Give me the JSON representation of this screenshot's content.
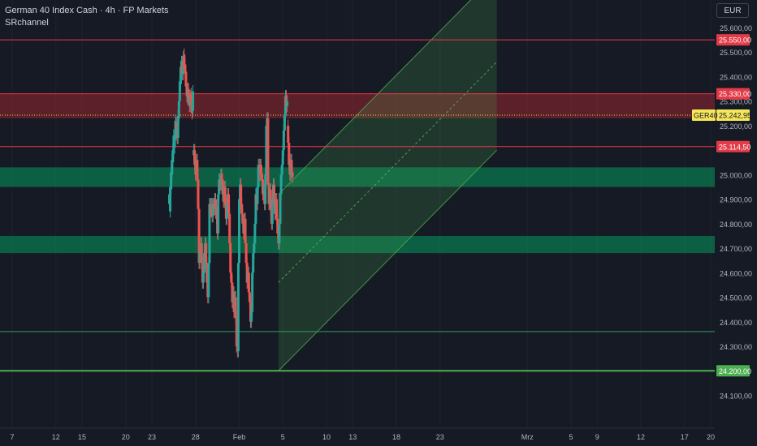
{
  "header": {
    "title": "German 40 Index Cash · 4h · FP Markets",
    "indicator": "SRchannel",
    "currency": "EUR"
  },
  "chart_data": {
    "type": "candlestick",
    "price_axis": {
      "min": 24050,
      "max": 25750,
      "ticks": [
        "25.600,00",
        "25.500,00",
        "25.400,00",
        "25.300,00",
        "25.200,00",
        "24.900,00",
        "24.800,00",
        "24.700,00",
        "24.600,00",
        "24.500,00",
        "24.400,00",
        "24.300,00",
        "24.100,00"
      ],
      "tick_values": [
        25600,
        25500,
        25400,
        25300,
        25200,
        24900,
        24800,
        24700,
        24600,
        24500,
        24400,
        24300,
        24100
      ],
      "partial_tick": {
        "label": "25.000,00",
        "value": 25000
      }
    },
    "time_axis": {
      "labels": [
        "7",
        "12",
        "15",
        "20",
        "23",
        "28",
        "Feb",
        "5",
        "10",
        "13",
        "18",
        "23",
        "Mrz",
        "5",
        "9",
        "12",
        "17",
        "20"
      ],
      "positions": [
        7,
        12,
        15,
        20,
        23,
        28,
        33,
        38,
        43,
        46,
        51,
        56,
        66,
        71,
        74,
        79,
        84,
        87
      ]
    },
    "current_price": {
      "symbol": "GER40",
      "label": "25.242,95",
      "value": 25242.95
    },
    "resistance_levels": [
      {
        "label": "25.550,00",
        "value": 25550
      },
      {
        "label": "25.330,00",
        "value": 25330
      },
      {
        "label": "25.114,50",
        "value": 25114.5
      }
    ],
    "support_levels": [
      {
        "label": "24.200,00",
        "value": 24200
      }
    ],
    "zones": [
      {
        "type": "resistance",
        "top": 25330,
        "bottom": 25230
      },
      {
        "type": "support",
        "top": 25030,
        "bottom": 24950
      },
      {
        "type": "support",
        "top": 24750,
        "bottom": 24680
      }
    ],
    "extra_lines": [
      {
        "type": "support",
        "value": 24360
      }
    ],
    "channel": {
      "lower": [
        [
          37.5,
          24200
        ],
        [
          62.5,
          25100
        ]
      ],
      "upper": [
        [
          37.5,
          24920
        ],
        [
          62.5,
          25820
        ]
      ]
    },
    "candles": [
      [
        25.0,
        24920,
        24880
      ],
      [
        25.1,
        24950,
        24850
      ],
      [
        25.2,
        25010,
        24940
      ],
      [
        25.3,
        25060,
        25000
      ],
      [
        25.4,
        25100,
        25050
      ],
      [
        25.5,
        25160,
        25090
      ],
      [
        25.6,
        25130,
        25110
      ],
      [
        25.7,
        25220,
        25140
      ],
      [
        25.8,
        25190,
        25210
      ],
      [
        25.9,
        25150,
        25190
      ],
      [
        26.0,
        25240,
        25150
      ],
      [
        26.1,
        25300,
        25230
      ],
      [
        26.2,
        25380,
        25300
      ],
      [
        26.3,
        25440,
        25370
      ],
      [
        26.4,
        25460,
        25430
      ],
      [
        26.5,
        25410,
        25460
      ],
      [
        26.6,
        25480,
        25410
      ],
      [
        26.7,
        25440,
        25490
      ],
      [
        26.8,
        25420,
        25450
      ],
      [
        26.9,
        25360,
        25420
      ],
      [
        27.0,
        25320,
        25370
      ],
      [
        27.1,
        25350,
        25310
      ],
      [
        27.2,
        25310,
        25350
      ],
      [
        27.3,
        25280,
        25310
      ],
      [
        27.4,
        25320,
        25280
      ],
      [
        27.5,
        25290,
        25330
      ],
      [
        27.6,
        25250,
        25290
      ],
      [
        27.7,
        25340,
        25260
      ],
      [
        27.8,
        25100,
        25080
      ],
      [
        27.9,
        25040,
        25100
      ],
      [
        28.0,
        25000,
        25040
      ],
      [
        28.1,
        25060,
        25000
      ],
      [
        28.2,
        24980,
        25060
      ],
      [
        28.3,
        24860,
        24980
      ],
      [
        28.4,
        24640,
        24860
      ],
      [
        28.5,
        24680,
        24640
      ],
      [
        28.6,
        24720,
        24680
      ],
      [
        28.7,
        24640,
        24720
      ],
      [
        28.8,
        24560,
        24640
      ],
      [
        28.9,
        24600,
        24560
      ],
      [
        29.0,
        24680,
        24600
      ],
      [
        29.1,
        24720,
        24680
      ],
      [
        29.2,
        24640,
        24720
      ],
      [
        29.3,
        24560,
        24640
      ],
      [
        29.4,
        24500,
        24560
      ],
      [
        29.5,
        24640,
        24500
      ],
      [
        29.6,
        24880,
        24640
      ],
      [
        29.7,
        24850,
        24880
      ],
      [
        29.8,
        24880,
        24850
      ],
      [
        29.9,
        24830,
        24880
      ],
      [
        30.0,
        24880,
        24830
      ],
      [
        30.1,
        24860,
        24880
      ],
      [
        30.2,
        24900,
        24860
      ],
      [
        30.3,
        24870,
        24900
      ],
      [
        30.4,
        24820,
        24870
      ],
      [
        30.5,
        24760,
        24820
      ],
      [
        30.6,
        24920,
        24760
      ],
      [
        30.7,
        24980,
        24920
      ],
      [
        30.8,
        24960,
        24980
      ],
      [
        30.9,
        25000,
        24960
      ],
      [
        31.0,
        24980,
        25000
      ],
      [
        31.1,
        24920,
        24980
      ],
      [
        31.2,
        24890,
        24920
      ],
      [
        31.3,
        24950,
        24890
      ],
      [
        31.4,
        24880,
        24950
      ],
      [
        31.5,
        24820,
        24880
      ],
      [
        31.6,
        24880,
        24820
      ],
      [
        31.7,
        24920,
        24880
      ],
      [
        31.8,
        24840,
        24920
      ],
      [
        31.9,
        24720,
        24840
      ],
      [
        32.0,
        24600,
        24720
      ],
      [
        32.1,
        24560,
        24600
      ],
      [
        32.2,
        24480,
        24560
      ],
      [
        32.3,
        24520,
        24480
      ],
      [
        32.4,
        24440,
        24520
      ],
      [
        32.5,
        24500,
        24440
      ],
      [
        32.6,
        24420,
        24500
      ],
      [
        32.7,
        24300,
        24420
      ],
      [
        32.8,
        24280,
        24300
      ],
      [
        32.9,
        24640,
        24280
      ],
      [
        33.0,
        24900,
        24640
      ],
      [
        33.1,
        24960,
        24900
      ],
      [
        33.2,
        24880,
        24960
      ],
      [
        33.3,
        24840,
        24880
      ],
      [
        33.4,
        24800,
        24840
      ],
      [
        33.5,
        24760,
        24800
      ],
      [
        33.6,
        24820,
        24760
      ],
      [
        33.7,
        24720,
        24820
      ],
      [
        33.8,
        24640,
        24720
      ],
      [
        33.9,
        24560,
        24640
      ],
      [
        34.0,
        24600,
        24560
      ],
      [
        34.1,
        24520,
        24600
      ],
      [
        34.2,
        24480,
        24520
      ],
      [
        34.3,
        24400,
        24480
      ],
      [
        34.4,
        24440,
        24400
      ],
      [
        34.5,
        24600,
        24440
      ],
      [
        34.6,
        24680,
        24600
      ],
      [
        34.7,
        24720,
        24680
      ],
      [
        34.8,
        24800,
        24720
      ],
      [
        34.9,
        24920,
        24800
      ],
      [
        35.0,
        24880,
        24920
      ],
      [
        35.1,
        24950,
        24880
      ],
      [
        35.2,
        25040,
        24950
      ],
      [
        35.3,
        25000,
        25040
      ],
      [
        35.4,
        25040,
        25000
      ],
      [
        35.5,
        25000,
        25040
      ],
      [
        35.6,
        24980,
        25000
      ],
      [
        35.7,
        24920,
        24980
      ],
      [
        35.8,
        24940,
        24920
      ],
      [
        35.9,
        24880,
        24940
      ],
      [
        36.0,
        25000,
        24880
      ],
      [
        36.1,
        25200,
        25000
      ],
      [
        36.2,
        25230,
        25200
      ],
      [
        36.3,
        24960,
        25230
      ],
      [
        36.4,
        24880,
        24960
      ],
      [
        36.5,
        24940,
        24880
      ],
      [
        36.6,
        24860,
        24940
      ],
      [
        36.7,
        24800,
        24860
      ],
      [
        36.8,
        24900,
        24800
      ],
      [
        36.9,
        24960,
        24900
      ],
      [
        37.0,
        24880,
        24960
      ],
      [
        37.1,
        24840,
        24880
      ],
      [
        37.2,
        24900,
        24840
      ],
      [
        37.3,
        24820,
        24900
      ],
      [
        37.4,
        24760,
        24820
      ],
      [
        37.5,
        24720,
        24760
      ],
      [
        37.6,
        24800,
        24720
      ],
      [
        37.7,
        24920,
        24800
      ],
      [
        37.8,
        25000,
        24920
      ],
      [
        37.9,
        25040,
        25000
      ],
      [
        38.0,
        25100,
        25040
      ],
      [
        38.1,
        25180,
        25100
      ],
      [
        38.2,
        25240,
        25180
      ],
      [
        38.3,
        25320,
        25240
      ],
      [
        38.4,
        25280,
        25320
      ],
      [
        38.5,
        25300,
        25280
      ],
      [
        38.6,
        25130,
        25200
      ],
      [
        38.7,
        25040,
        25130
      ],
      [
        38.8,
        25000,
        25040
      ],
      [
        38.9,
        25060,
        25000
      ],
      [
        39.0,
        25010,
        25060
      ],
      [
        39.1,
        24990,
        25010
      ]
    ]
  }
}
